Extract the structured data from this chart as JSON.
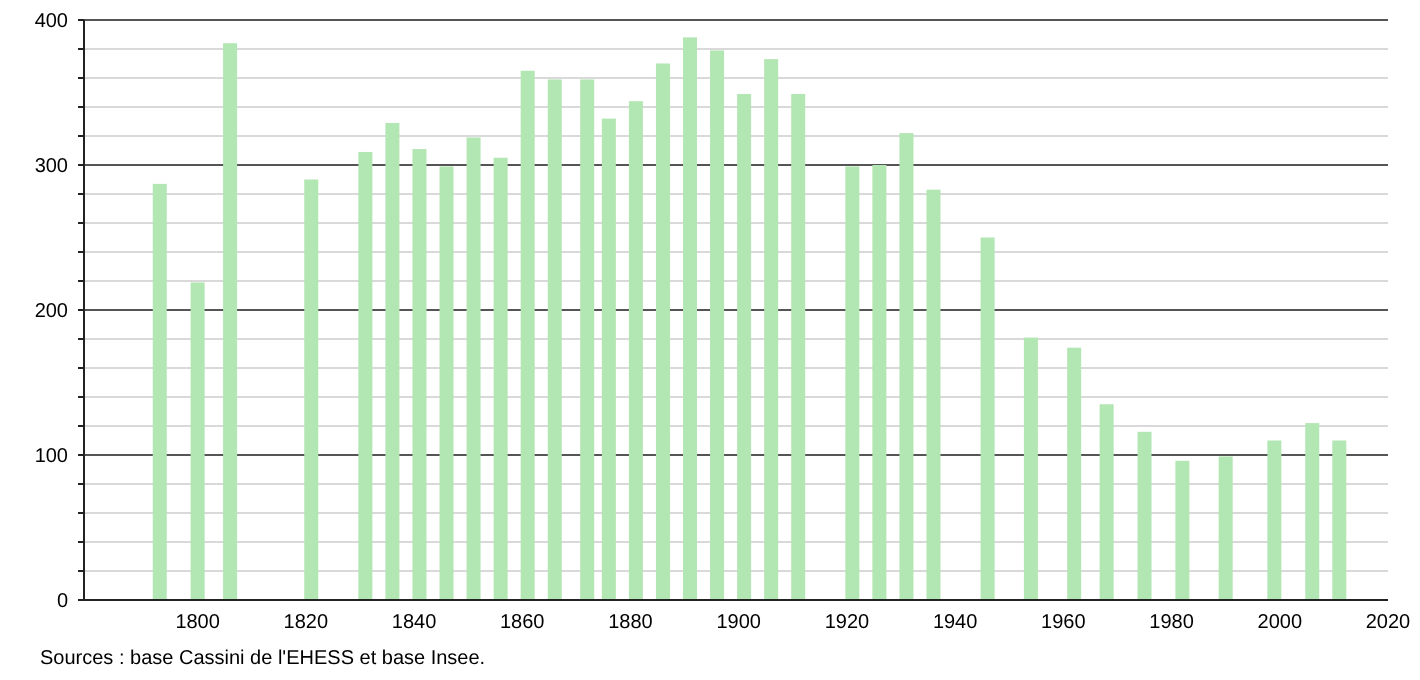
{
  "chart_data": {
    "type": "bar",
    "x": [
      1793,
      1800,
      1806,
      1821,
      1831,
      1836,
      1841,
      1846,
      1851,
      1856,
      1861,
      1866,
      1872,
      1876,
      1881,
      1886,
      1891,
      1896,
      1901,
      1906,
      1911,
      1921,
      1926,
      1931,
      1936,
      1946,
      1954,
      1962,
      1968,
      1975,
      1982,
      1990,
      1999,
      2006,
      2011
    ],
    "values": [
      287,
      219,
      384,
      290,
      309,
      329,
      311,
      299,
      319,
      305,
      365,
      359,
      359,
      332,
      344,
      370,
      388,
      379,
      349,
      373,
      349,
      299,
      300,
      322,
      283,
      250,
      181,
      174,
      135,
      116,
      96,
      99,
      110,
      122,
      110
    ],
    "color": "#b2e6b2",
    "xlim": [
      1779,
      2020
    ],
    "xticks": [
      1800,
      1820,
      1840,
      1860,
      1880,
      1900,
      1920,
      1940,
      1960,
      1980,
      2000,
      2020
    ],
    "ylim": [
      0,
      400
    ],
    "yticks": [
      0,
      {
        "value": 20,
        "label": null
      },
      {
        "value": 40,
        "label": null
      },
      {
        "value": 60,
        "label": null
      },
      {
        "value": 80,
        "label": null
      },
      100,
      {
        "value": 120,
        "label": null
      },
      {
        "value": 140,
        "label": null
      },
      {
        "value": 160,
        "label": null
      },
      {
        "value": 180,
        "label": null
      },
      200,
      {
        "value": 220,
        "label": null
      },
      {
        "value": 240,
        "label": null
      },
      {
        "value": 260,
        "label": null
      },
      {
        "value": 280,
        "label": null
      },
      300,
      {
        "value": 320,
        "label": null
      },
      {
        "value": 340,
        "label": null
      },
      {
        "value": 360,
        "label": null
      },
      {
        "value": 380,
        "label": null
      },
      400
    ],
    "grid": "y",
    "annotations": [
      "Sources : base Cassini de l'EHESS et base Insee."
    ]
  }
}
